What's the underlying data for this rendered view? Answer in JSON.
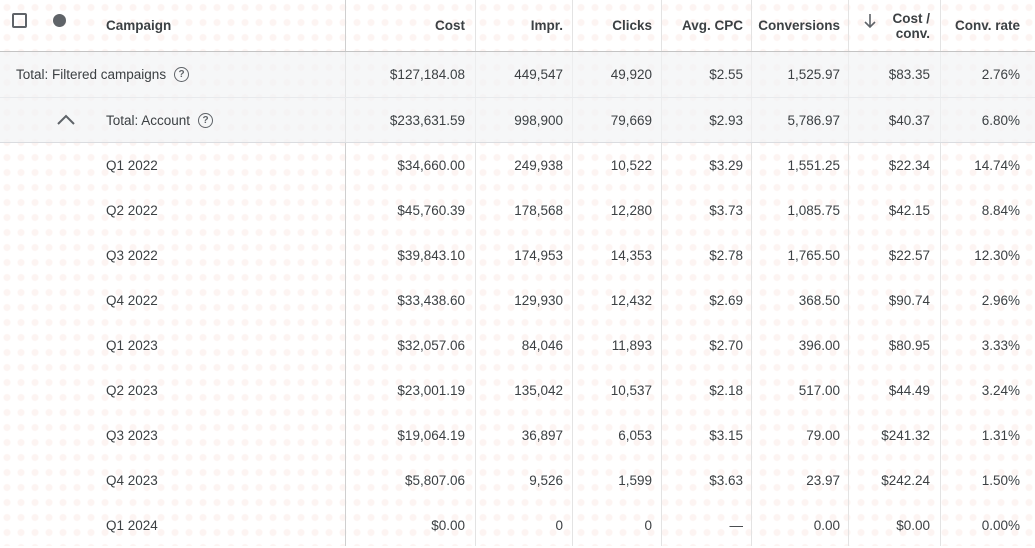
{
  "header": {
    "campaign": "Campaign",
    "cost": "Cost",
    "impr": "Impr.",
    "clicks": "Clicks",
    "avg_cpc": "Avg. CPC",
    "conversions": "Conversions",
    "cost_conv_line1": "Cost /",
    "cost_conv_line2": "conv.",
    "conv_rate": "Conv. rate",
    "icons": {
      "select_all": "checkbox-icon",
      "status": "status-dot-icon",
      "sort": "arrow-down-icon"
    }
  },
  "total_filtered": {
    "label": "Total: Filtered campaigns",
    "cost": "$127,184.08",
    "impr": "449,547",
    "clicks": "49,920",
    "avg_cpc": "$2.55",
    "conversions": "1,525.97",
    "cost_conv": "$83.35",
    "conv_rate": "2.76%"
  },
  "total_account": {
    "label": "Total: Account",
    "cost": "$233,631.59",
    "impr": "998,900",
    "clicks": "79,669",
    "avg_cpc": "$2.93",
    "conversions": "5,786.97",
    "cost_conv": "$40.37",
    "conv_rate": "6.80%"
  },
  "help_glyph": "?",
  "rows": [
    {
      "campaign": "Q1 2022",
      "cost": "$34,660.00",
      "impr": "249,938",
      "clicks": "10,522",
      "avg_cpc": "$3.29",
      "conversions": "1,551.25",
      "cost_conv": "$22.34",
      "conv_rate": "14.74%"
    },
    {
      "campaign": "Q2 2022",
      "cost": "$45,760.39",
      "impr": "178,568",
      "clicks": "12,280",
      "avg_cpc": "$3.73",
      "conversions": "1,085.75",
      "cost_conv": "$42.15",
      "conv_rate": "8.84%"
    },
    {
      "campaign": "Q3 2022",
      "cost": "$39,843.10",
      "impr": "174,953",
      "clicks": "14,353",
      "avg_cpc": "$2.78",
      "conversions": "1,765.50",
      "cost_conv": "$22.57",
      "conv_rate": "12.30%"
    },
    {
      "campaign": "Q4 2022",
      "cost": "$33,438.60",
      "impr": "129,930",
      "clicks": "12,432",
      "avg_cpc": "$2.69",
      "conversions": "368.50",
      "cost_conv": "$90.74",
      "conv_rate": "2.96%"
    },
    {
      "campaign": "Q1 2023",
      "cost": "$32,057.06",
      "impr": "84,046",
      "clicks": "11,893",
      "avg_cpc": "$2.70",
      "conversions": "396.00",
      "cost_conv": "$80.95",
      "conv_rate": "3.33%"
    },
    {
      "campaign": "Q2 2023",
      "cost": "$23,001.19",
      "impr": "135,042",
      "clicks": "10,537",
      "avg_cpc": "$2.18",
      "conversions": "517.00",
      "cost_conv": "$44.49",
      "conv_rate": "3.24%"
    },
    {
      "campaign": "Q3 2023",
      "cost": "$19,064.19",
      "impr": "36,897",
      "clicks": "6,053",
      "avg_cpc": "$3.15",
      "conversions": "79.00",
      "cost_conv": "$241.32",
      "conv_rate": "1.31%"
    },
    {
      "campaign": "Q4 2023",
      "cost": "$5,807.06",
      "impr": "9,526",
      "clicks": "1,599",
      "avg_cpc": "$3.63",
      "conversions": "23.97",
      "cost_conv": "$242.24",
      "conv_rate": "1.50%"
    },
    {
      "campaign": "Q1 2024",
      "cost": "$0.00",
      "impr": "0",
      "clicks": "0",
      "avg_cpc": "—",
      "conversions": "0.00",
      "cost_conv": "$0.00",
      "conv_rate": "0.00%"
    }
  ]
}
